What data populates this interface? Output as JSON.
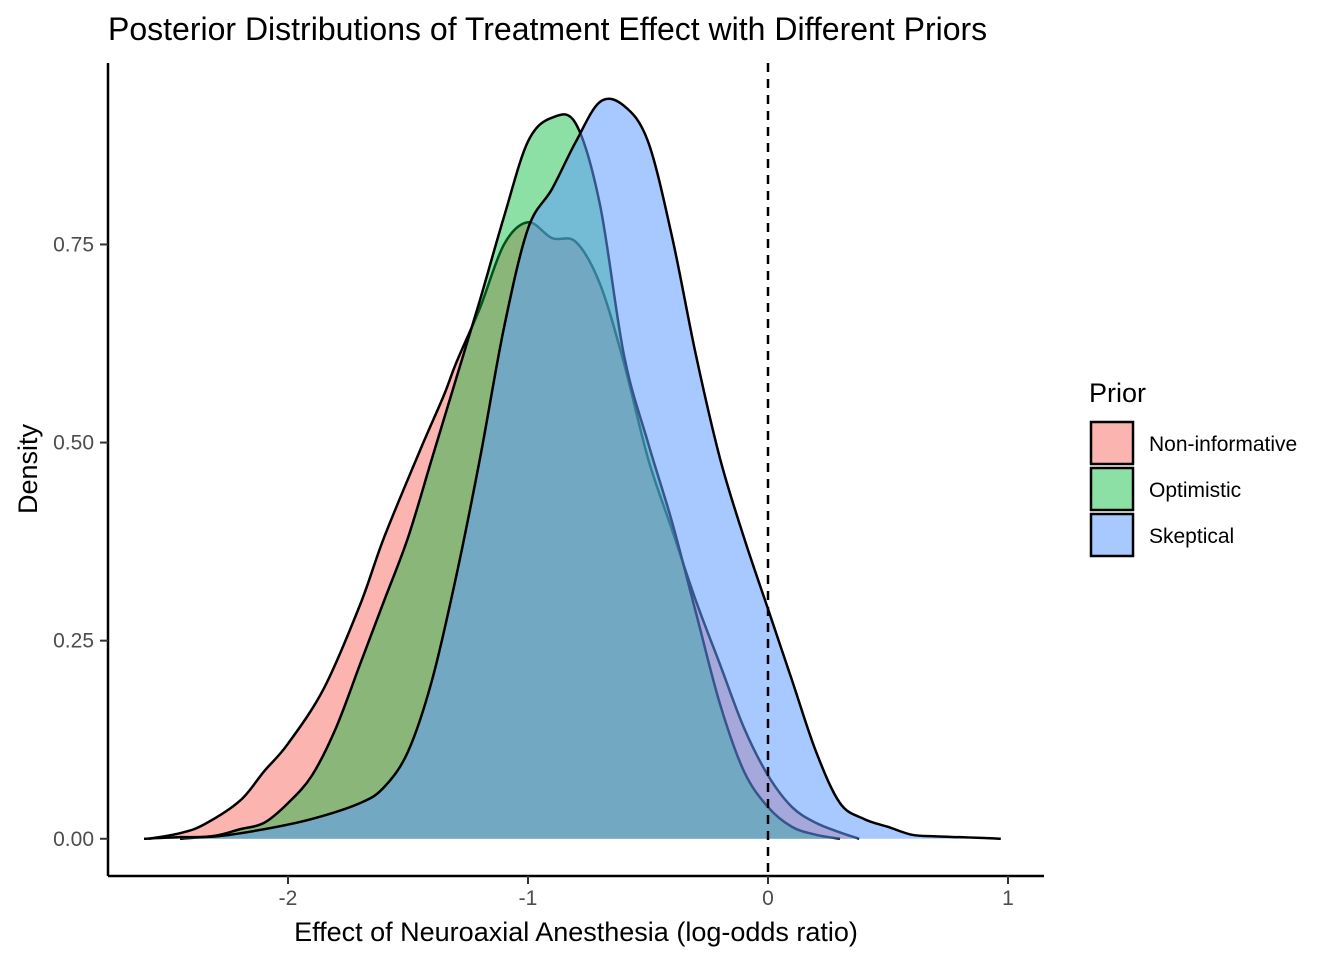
{
  "chart_data": {
    "type": "area",
    "title": "Posterior Distributions of Treatment Effect with Different Priors",
    "xlabel": "Effect of Neuroaxial Anesthesia (log-odds ratio)",
    "ylabel": "Density",
    "xlim": [
      -2.75,
      1.15
    ],
    "ylim": [
      -0.047,
      0.979
    ],
    "xticks": [
      -2,
      -1,
      0,
      1
    ],
    "xtick_labels": [
      "-2",
      "-1",
      "0",
      "1"
    ],
    "yticks": [
      0,
      0.25,
      0.5,
      0.75
    ],
    "ytick_labels": [
      "0.00",
      "0.25",
      "0.50",
      "0.75"
    ],
    "grid": false,
    "reference_line": {
      "x": 0,
      "style": "dashed"
    },
    "legend": {
      "title": "Prior",
      "position": "right"
    },
    "series": [
      {
        "name": "Non-informative",
        "color": "#F8766D",
        "opacity": 0.55,
        "x": [
          -2.58,
          -2.45,
          -2.35,
          -2.2,
          -2.1,
          -2.0,
          -1.85,
          -1.7,
          -1.6,
          -1.45,
          -1.35,
          -1.3,
          -1.2,
          -1.1,
          -1.0,
          -0.9,
          -0.8,
          -0.7,
          -0.6,
          -0.5,
          -0.4,
          -0.3,
          -0.2,
          -0.1,
          0.0,
          0.1,
          0.2,
          0.3,
          0.38
        ],
        "y": [
          0.0,
          0.007,
          0.018,
          0.048,
          0.085,
          0.12,
          0.19,
          0.295,
          0.38,
          0.49,
          0.56,
          0.6,
          0.67,
          0.75,
          0.778,
          0.758,
          0.753,
          0.7,
          0.6,
          0.48,
          0.39,
          0.3,
          0.22,
          0.14,
          0.08,
          0.04,
          0.02,
          0.008,
          0.0
        ]
      },
      {
        "name": "Optimistic",
        "color": "#00BA38",
        "opacity": 0.45,
        "x": [
          -2.45,
          -2.3,
          -2.2,
          -2.1,
          -2.0,
          -1.9,
          -1.8,
          -1.7,
          -1.6,
          -1.5,
          -1.4,
          -1.3,
          -1.2,
          -1.1,
          -1.0,
          -0.9,
          -0.8,
          -0.7,
          -0.6,
          -0.5,
          -0.4,
          -0.3,
          -0.2,
          -0.1,
          0.0,
          0.1,
          0.2,
          0.3
        ],
        "y": [
          0.0,
          0.004,
          0.012,
          0.02,
          0.045,
          0.08,
          0.14,
          0.22,
          0.3,
          0.38,
          0.48,
          0.58,
          0.68,
          0.785,
          0.88,
          0.91,
          0.902,
          0.8,
          0.61,
          0.5,
          0.4,
          0.285,
          0.17,
          0.085,
          0.04,
          0.015,
          0.005,
          0.0
        ]
      },
      {
        "name": "Skeptical",
        "color": "#619CFF",
        "opacity": 0.55,
        "x": [
          -2.6,
          -2.45,
          -2.3,
          -2.1,
          -1.9,
          -1.7,
          -1.6,
          -1.5,
          -1.4,
          -1.3,
          -1.2,
          -1.1,
          -1.0,
          -0.9,
          -0.8,
          -0.7,
          -0.6,
          -0.5,
          -0.4,
          -0.3,
          -0.2,
          -0.1,
          0.0,
          0.1,
          0.2,
          0.3,
          0.4,
          0.5,
          0.6,
          0.7,
          0.8,
          0.9,
          0.97
        ],
        "y": [
          0.0,
          0.002,
          0.003,
          0.012,
          0.025,
          0.045,
          0.065,
          0.11,
          0.2,
          0.33,
          0.48,
          0.645,
          0.77,
          0.82,
          0.88,
          0.93,
          0.925,
          0.88,
          0.76,
          0.61,
          0.48,
          0.38,
          0.29,
          0.2,
          0.11,
          0.045,
          0.025,
          0.015,
          0.005,
          0.003,
          0.002,
          0.001,
          0.0
        ]
      }
    ]
  }
}
